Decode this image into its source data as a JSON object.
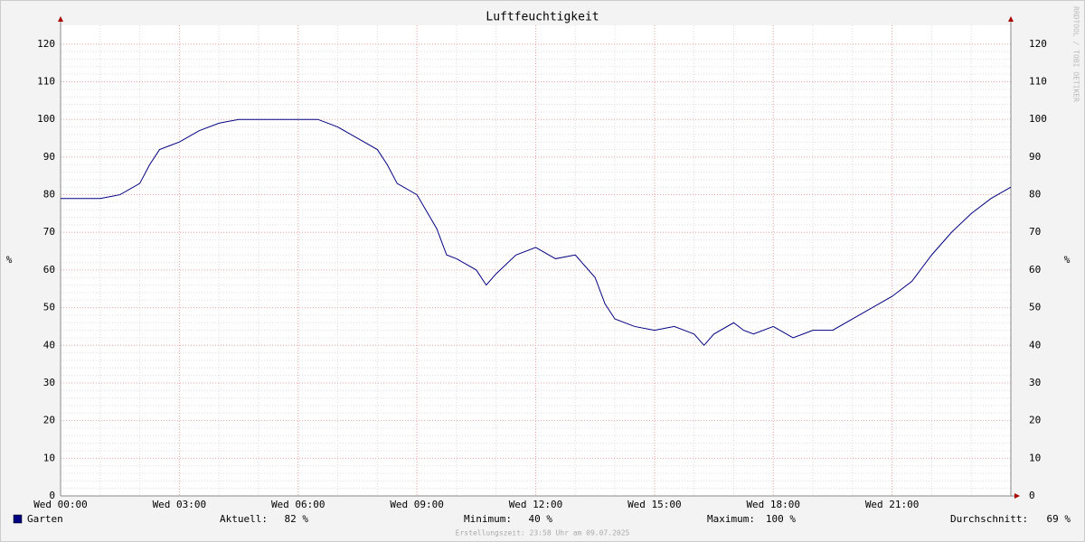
{
  "chart_data": {
    "type": "line",
    "title": "Luftfeuchtigkeit",
    "y_label": "%",
    "y2_label": "%",
    "watermark": "RRDTOOL / TOBI OETIKER",
    "x": [
      0,
      0.5,
      1,
      1.5,
      2,
      2.25,
      2.5,
      2.75,
      3,
      3.5,
      4,
      4.5,
      5,
      5.5,
      6,
      6.5,
      7,
      7.5,
      8,
      8.25,
      8.5,
      9,
      9.5,
      9.75,
      10,
      10.5,
      10.75,
      11,
      11.5,
      12,
      12.5,
      13,
      13.5,
      13.75,
      14,
      14.5,
      15,
      15.5,
      16,
      16.25,
      16.5,
      17,
      17.25,
      17.5,
      18,
      18.5,
      19,
      19.5,
      20,
      20.5,
      21,
      21.5,
      22,
      22.5,
      23,
      23.5,
      24
    ],
    "series": [
      {
        "name": "Garten",
        "color": "#000080",
        "values": [
          79,
          79,
          79,
          80,
          83,
          88,
          92,
          93,
          94,
          97,
          99,
          100,
          100,
          100,
          100,
          100,
          98,
          95,
          92,
          88,
          83,
          80,
          71,
          64,
          63,
          60,
          56,
          59,
          64,
          66,
          63,
          64,
          58,
          51,
          47,
          45,
          44,
          45,
          43,
          40,
          43,
          46,
          44,
          43,
          45,
          42,
          44,
          44,
          47,
          50,
          53,
          57,
          64,
          70,
          75,
          79,
          82
        ]
      }
    ],
    "xlim": [
      0,
      24
    ],
    "xticks": [
      {
        "value": 0,
        "label": "Wed 00:00"
      },
      {
        "value": 3,
        "label": "Wed 03:00"
      },
      {
        "value": 6,
        "label": "Wed 06:00"
      },
      {
        "value": 9,
        "label": "Wed 09:00"
      },
      {
        "value": 12,
        "label": "Wed 12:00"
      },
      {
        "value": 15,
        "label": "Wed 15:00"
      },
      {
        "value": 18,
        "label": "Wed 18:00"
      },
      {
        "value": 21,
        "label": "Wed 21:00"
      }
    ],
    "ylim": [
      0,
      125
    ],
    "yticks": [
      0,
      10,
      20,
      30,
      40,
      50,
      60,
      70,
      80,
      90,
      100,
      110,
      120
    ],
    "grid": true,
    "stats": [
      {
        "label": "Aktuell:",
        "value": "82 %"
      },
      {
        "label": "Minimum:",
        "value": "40 %"
      },
      {
        "label": "Maximum:",
        "value": "100 %"
      },
      {
        "label": "Durchschnitt:",
        "value": "69 %"
      }
    ],
    "footnote": "Erstellungszeit: 23:58 Uhr am 09.07.2025"
  }
}
